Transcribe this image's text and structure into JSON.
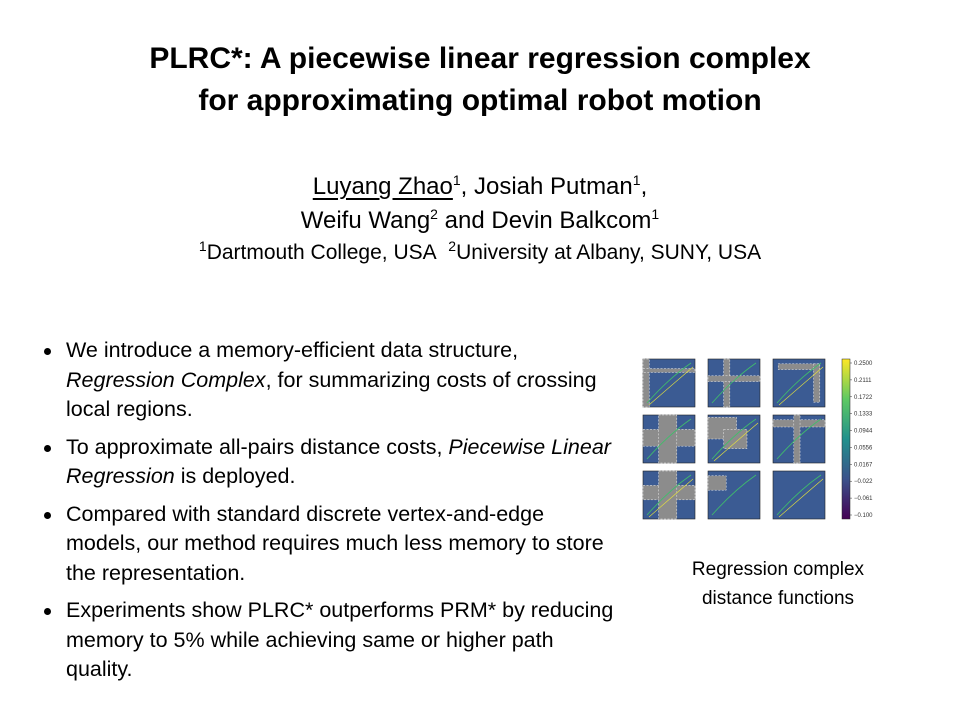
{
  "title": {
    "line1": "PLRC*: A piecewise linear regression complex",
    "line2": "for approximating optimal robot motion"
  },
  "authors": {
    "a1": "Luyang Zhao",
    "a1_sup": "1",
    "sep1": ", ",
    "a2": "Josiah Putman",
    "a2_sup": "1",
    "sep2": ",",
    "a3": "Weifu Wang",
    "a3_sup": "2",
    "and": " and ",
    "a4": "Devin Balkcom",
    "a4_sup": "1"
  },
  "affiliations": {
    "n1": "1",
    "aff1": "Dartmouth College, USA",
    "n2": "2",
    "aff2": "University at Albany, SUNY, USA"
  },
  "bullets": {
    "b1_pre": "We introduce a memory-efficient data structure, ",
    "b1_em": "Regression Complex",
    "b1_post": ", for summarizing costs of crossing local regions.",
    "b2_pre": "To approximate all-pairs distance costs, ",
    "b2_em": "Piecewise Linear Regression",
    "b2_post": " is deployed.",
    "b3": "Compared with standard discrete vertex-and-edge models, our method requires much less memory to store the representation.",
    "b4": "Experiments show PLRC* outperforms PRM* by reducing memory to 5% while achieving same or higher path quality."
  },
  "figure": {
    "colorbar_ticks": [
      "0.2500",
      "0.2111",
      "0.1722",
      "0.1333",
      "0.0944",
      "0.0556",
      "0.0167",
      "−0.022",
      "−0.061",
      "−0.100"
    ],
    "colors": {
      "field": "#3b5b93",
      "obstacle": "#8c8c8c",
      "contour_green": "#3fbf6a",
      "contour_yellow": "#e8e53a"
    }
  },
  "caption": {
    "line1": "Regression complex",
    "line2": "distance functions"
  }
}
